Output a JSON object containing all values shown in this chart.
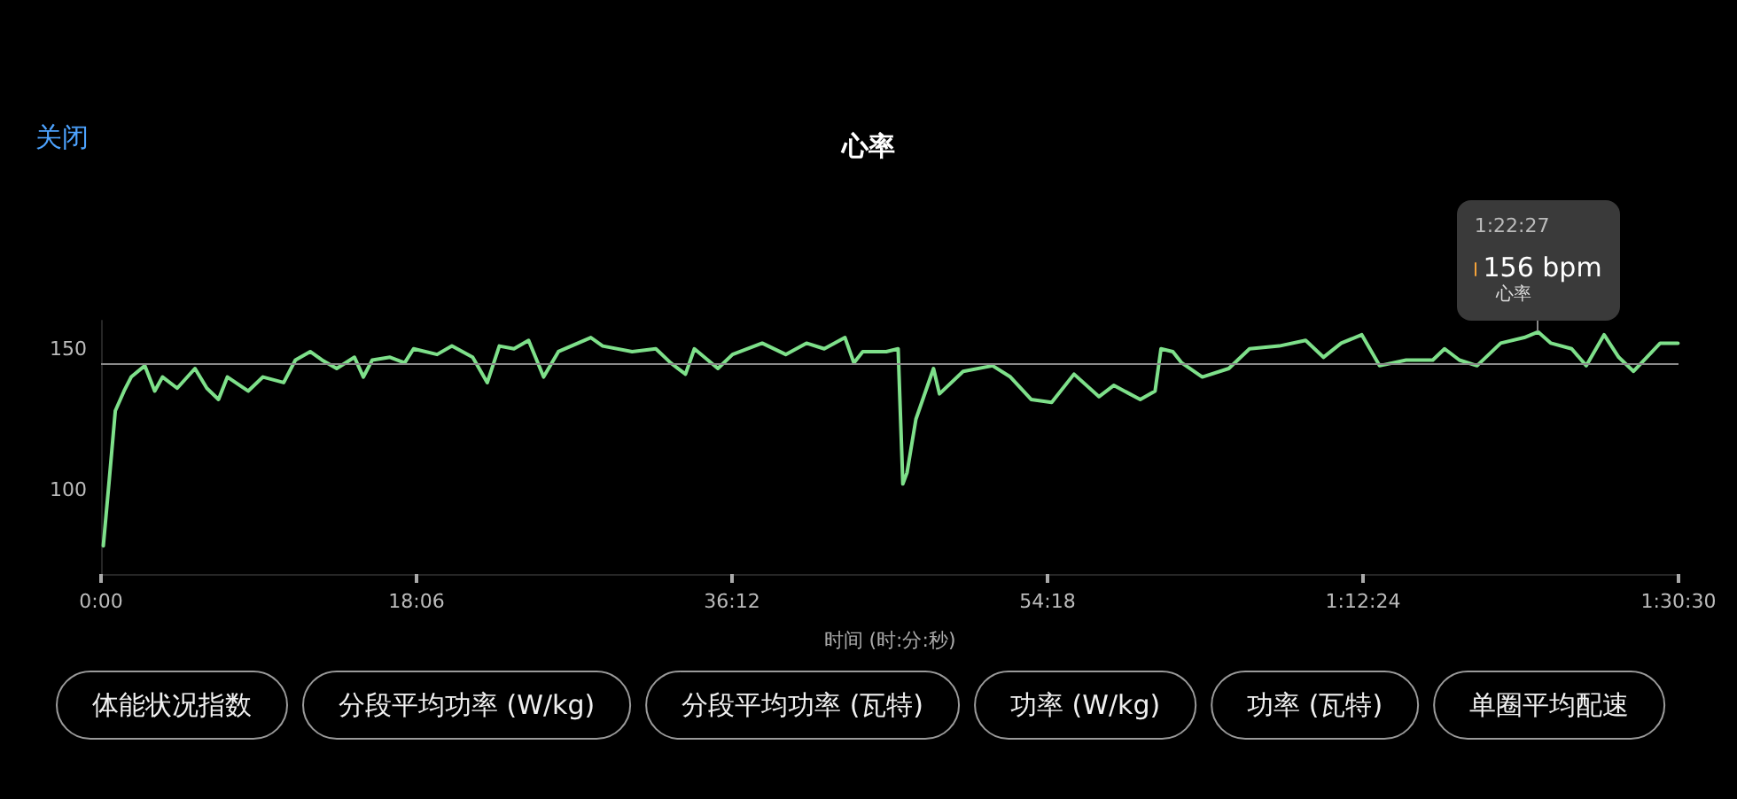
{
  "chart_data": {
    "type": "line",
    "title": "心率",
    "xlabel": "时间 (时:分:秒)",
    "xlim": [
      0,
      90.5
    ],
    "xticks": [
      {
        "value": 0,
        "label": "0:00"
      },
      {
        "value": 18.1,
        "label": "18:06"
      },
      {
        "value": 36.2,
        "label": "36:12"
      },
      {
        "value": 54.3,
        "label": "54:18"
      },
      {
        "value": 72.4,
        "label": "1:12:24"
      },
      {
        "value": 90.5,
        "label": "1:30:30"
      }
    ],
    "ylim": [
      70,
      160
    ],
    "yticks": [
      100,
      150
    ],
    "grid": false,
    "marker": "none",
    "line_style": "solid",
    "ref_lines": [
      {
        "axis": "y",
        "value": 145,
        "color": "#8a8a8a"
      }
    ],
    "series": [
      {
        "color": "#7ee08a",
        "x": [
          0.13,
          0.48,
          0.82,
          1.32,
          1.73,
          2.51,
          3.08,
          3.53,
          4.37,
          5.39,
          6.07,
          6.74,
          7.25,
          8.44,
          9.29,
          10.48,
          11.15,
          12,
          12.68,
          13.52,
          14.54,
          15.05,
          15.56,
          16.58,
          17.42,
          17.93,
          19.28,
          20.13,
          21.32,
          22.16,
          22.85,
          23.69,
          24.53,
          25.39,
          26.24,
          28.1,
          28.78,
          30.47,
          31.83,
          32.68,
          33.53,
          34.04,
          35.39,
          36.23,
          37.93,
          39.28,
          40.47,
          41.49,
          42.68,
          43.19,
          43.7,
          45.05,
          45.73,
          46,
          46.24,
          46.75,
          47.76,
          48.1,
          49.46,
          51.15,
          52.17,
          53.36,
          54.54,
          55.82,
          57.25,
          58.1,
          59.62,
          60.47,
          60.81,
          61.49,
          62,
          63.18,
          64.7,
          65.89,
          67.59,
          69.11,
          70.13,
          71.15,
          72.33,
          73.35,
          74.87,
          76.4,
          77.08,
          77.93,
          78.94,
          80.3,
          81.65,
          82.45,
          83.18,
          84.37,
          85.21,
          86.23,
          87.07,
          87.92,
          89.45,
          90.47
        ],
        "values": [
          80,
          104,
          128,
          135,
          140,
          144,
          135,
          140,
          136,
          143,
          136,
          132,
          140,
          135,
          140,
          138,
          146,
          149,
          146,
          143,
          147,
          140,
          146,
          147,
          145,
          150,
          148,
          151,
          147,
          138,
          151,
          150,
          153,
          140,
          149,
          154,
          151,
          149,
          150,
          145,
          141,
          150,
          143,
          148,
          152,
          148,
          152,
          150,
          154,
          145,
          149,
          149,
          150,
          102,
          106,
          125,
          143,
          134,
          142,
          144,
          140,
          132,
          131,
          141,
          133,
          137,
          132,
          135,
          150,
          149,
          145,
          140,
          143,
          150,
          151,
          153,
          147,
          152,
          155,
          144,
          146,
          146,
          150,
          146,
          144,
          152,
          154,
          156,
          152,
          150,
          144,
          155,
          147,
          142,
          152,
          152
        ]
      }
    ],
    "annotations": [
      "关闭",
      "1:22:27",
      {
        "text": "156 bpm",
        "x": 82.45,
        "y": 156
      },
      "心率",
      "体能状况指数",
      "分段平均功率 (W/kg)",
      "分段平均功率 (瓦特)",
      "功率 (W/kg)",
      "功率 (瓦特)",
      "单圈平均配速"
    ]
  }
}
